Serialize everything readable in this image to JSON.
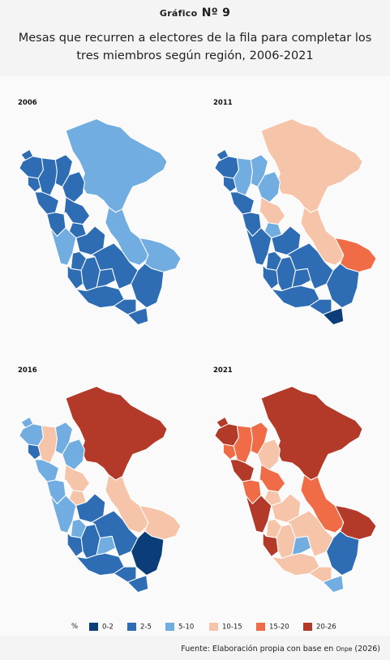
{
  "header": {
    "chart_word": "Gráfico",
    "chart_number": "Nº 9",
    "title_line1": "Mesas que recurren a electores de la fila para completar los",
    "title_line2": "tres miembros según región, 2006-2021"
  },
  "legend": {
    "unit": "%",
    "classes": [
      {
        "label": "0-2",
        "color": "#0b3d78"
      },
      {
        "label": "2-5",
        "color": "#2e6db4"
      },
      {
        "label": "5-10",
        "color": "#71ade0"
      },
      {
        "label": "10-15",
        "color": "#f6c5a9"
      },
      {
        "label": "15-20",
        "color": "#ef6c46"
      },
      {
        "label": "20-26",
        "color": "#b33a28"
      }
    ]
  },
  "source": {
    "prefix": "Fuente: Elaboración propia con base en",
    "org": "Onpe",
    "year": "(2026)"
  },
  "maps": [
    {
      "year": "2006",
      "regions": {
        "tumbes": 1,
        "piura": 1,
        "lambayeque": 1,
        "cajamarca": 1,
        "amazonas": 1,
        "loreto": 2,
        "sanmartin": 1,
        "lalibertad": 1,
        "ancash": 1,
        "huanuco": 1,
        "pasco": 1,
        "ucayali": 2,
        "lima": 2,
        "junin": 1,
        "huancavelica": 1,
        "ica": 1,
        "ayacucho": 1,
        "apurimac": 1,
        "cusco": 1,
        "madrededios": 2,
        "arequipa": 1,
        "puno": 1,
        "moquegua": 1,
        "tacna": 1
      }
    },
    {
      "year": "2011",
      "regions": {
        "tumbes": 1,
        "piura": 1,
        "lambayeque": 1,
        "cajamarca": 2,
        "amazonas": 2,
        "loreto": 3,
        "sanmartin": 2,
        "lalibertad": 1,
        "ancash": 1,
        "huanuco": 3,
        "pasco": 2,
        "ucayali": 3,
        "lima": 1,
        "junin": 1,
        "huancavelica": 1,
        "ica": 1,
        "ayacucho": 1,
        "apurimac": 1,
        "cusco": 1,
        "madrededios": 4,
        "arequipa": 1,
        "puno": 1,
        "moquegua": 1,
        "tacna": 0
      }
    },
    {
      "year": "2016",
      "regions": {
        "tumbes": 2,
        "piura": 2,
        "lambayeque": 1,
        "cajamarca": 3,
        "amazonas": 2,
        "loreto": 5,
        "sanmartin": 2,
        "lalibertad": 2,
        "ancash": 2,
        "huanuco": 3,
        "pasco": 3,
        "ucayali": 3,
        "lima": 2,
        "junin": 1,
        "huancavelica": 2,
        "ica": 1,
        "ayacucho": 1,
        "apurimac": 2,
        "cusco": 1,
        "madrededios": 3,
        "arequipa": 1,
        "puno": 0,
        "moquegua": 1,
        "tacna": 1
      }
    },
    {
      "year": "2021",
      "regions": {
        "tumbes": 5,
        "piura": 5,
        "lambayeque": 4,
        "cajamarca": 4,
        "amazonas": 4,
        "loreto": 5,
        "sanmartin": 3,
        "lalibertad": 5,
        "ancash": 4,
        "huanuco": 4,
        "pasco": 3,
        "ucayali": 4,
        "lima": 5,
        "junin": 3,
        "huancavelica": 3,
        "ica": 5,
        "ayacucho": 3,
        "apurimac": 2,
        "cusco": 3,
        "madrededios": 5,
        "arequipa": 3,
        "puno": 1,
        "moquegua": 3,
        "tacna": 2
      }
    }
  ]
}
